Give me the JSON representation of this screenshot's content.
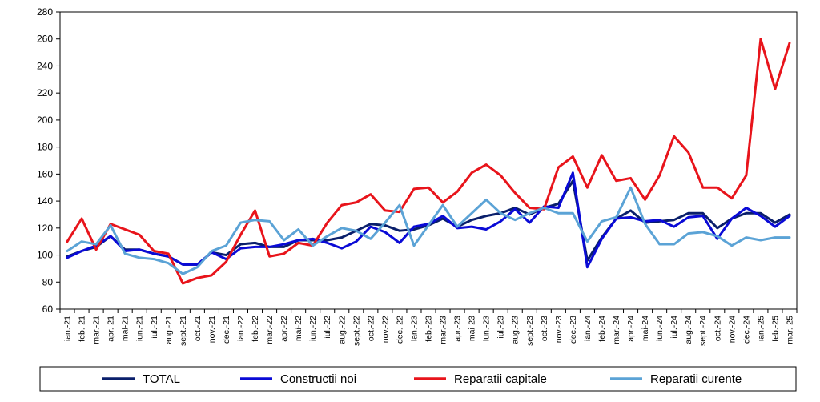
{
  "chart_data": {
    "type": "line",
    "title": "",
    "xlabel": "",
    "ylabel": "",
    "ylim": [
      60,
      280
    ],
    "yticks": [
      60,
      80,
      100,
      120,
      140,
      160,
      180,
      200,
      220,
      240,
      260,
      280
    ],
    "grid": false,
    "legend_position": "bottom",
    "categories": [
      "ian.-21",
      "feb.-21",
      "mar.-21",
      "apr.-21",
      "mai-21",
      "iun.-21",
      "iul.-21",
      "aug.-21",
      "sept.-21",
      "oct.-21",
      "nov.-21",
      "dec.-21",
      "ian.-22",
      "feb.-22",
      "mar.-22",
      "apr.-22",
      "mai-22",
      "iun.-22",
      "iul.-22",
      "aug.-22",
      "sept.-22",
      "oct.-22",
      "nov.-22",
      "dec.-22",
      "ian.-23",
      "feb.-23",
      "mar.-23",
      "apr.-23",
      "mai-23",
      "iun.-23",
      "iul.-23",
      "aug.-23",
      "sept.-23",
      "oct.-23",
      "nov.-23",
      "dec.-23",
      "ian.-24",
      "feb.-24",
      "mar.-24",
      "apr.-24",
      "mai-24",
      "iun.-24",
      "iul.-24",
      "aug.-24",
      "sept.-24",
      "oct.-24",
      "nov.-24",
      "dec.-24",
      "ian.-25",
      "feb.-25",
      "mar.-25"
    ],
    "series": [
      {
        "name": "TOTAL",
        "color": "#0a1f6b",
        "values": [
          99,
          103,
          106,
          114,
          104,
          104,
          101,
          99,
          93,
          93,
          102,
          100,
          108,
          109,
          106,
          106,
          111,
          111,
          111,
          113,
          118,
          123,
          122,
          118,
          119,
          122,
          127,
          121,
          126,
          129,
          131,
          135,
          130,
          135,
          138,
          155,
          96,
          113,
          127,
          133,
          124,
          125,
          126,
          131,
          131,
          120,
          127,
          131,
          131,
          124,
          130
        ]
      },
      {
        "name": "Constructii noi",
        "color": "#0a0ad6",
        "values": [
          98,
          103,
          107,
          114,
          103,
          104,
          101,
          99,
          93,
          93,
          102,
          97,
          105,
          106,
          106,
          108,
          111,
          112,
          109,
          105,
          110,
          121,
          117,
          109,
          121,
          123,
          129,
          120,
          121,
          119,
          125,
          134,
          124,
          136,
          135,
          161,
          91,
          112,
          127,
          128,
          125,
          126,
          121,
          128,
          129,
          112,
          127,
          135,
          129,
          121,
          129
        ]
      },
      {
        "name": "Reparatii capitale",
        "color": "#e8141b",
        "values": [
          110,
          127,
          104,
          123,
          119,
          115,
          103,
          101,
          79,
          83,
          85,
          95,
          115,
          133,
          99,
          101,
          109,
          107,
          124,
          137,
          139,
          145,
          133,
          132,
          149,
          150,
          139,
          147,
          161,
          167,
          159,
          146,
          135,
          134,
          165,
          173,
          150,
          174,
          155,
          157,
          141,
          159,
          188,
          176,
          150,
          150,
          142,
          159,
          260,
          223,
          257
        ]
      },
      {
        "name": "Reparatii curente",
        "color": "#5ba3d6",
        "values": [
          103,
          110,
          108,
          122,
          101,
          98,
          97,
          94,
          86,
          91,
          103,
          107,
          124,
          126,
          125,
          111,
          119,
          107,
          114,
          120,
          118,
          112,
          124,
          137,
          107,
          122,
          137,
          121,
          131,
          141,
          131,
          126,
          131,
          135,
          131,
          131,
          110,
          125,
          128,
          150,
          123,
          108,
          108,
          116,
          117,
          114,
          107,
          113,
          111,
          113,
          113
        ]
      }
    ]
  }
}
